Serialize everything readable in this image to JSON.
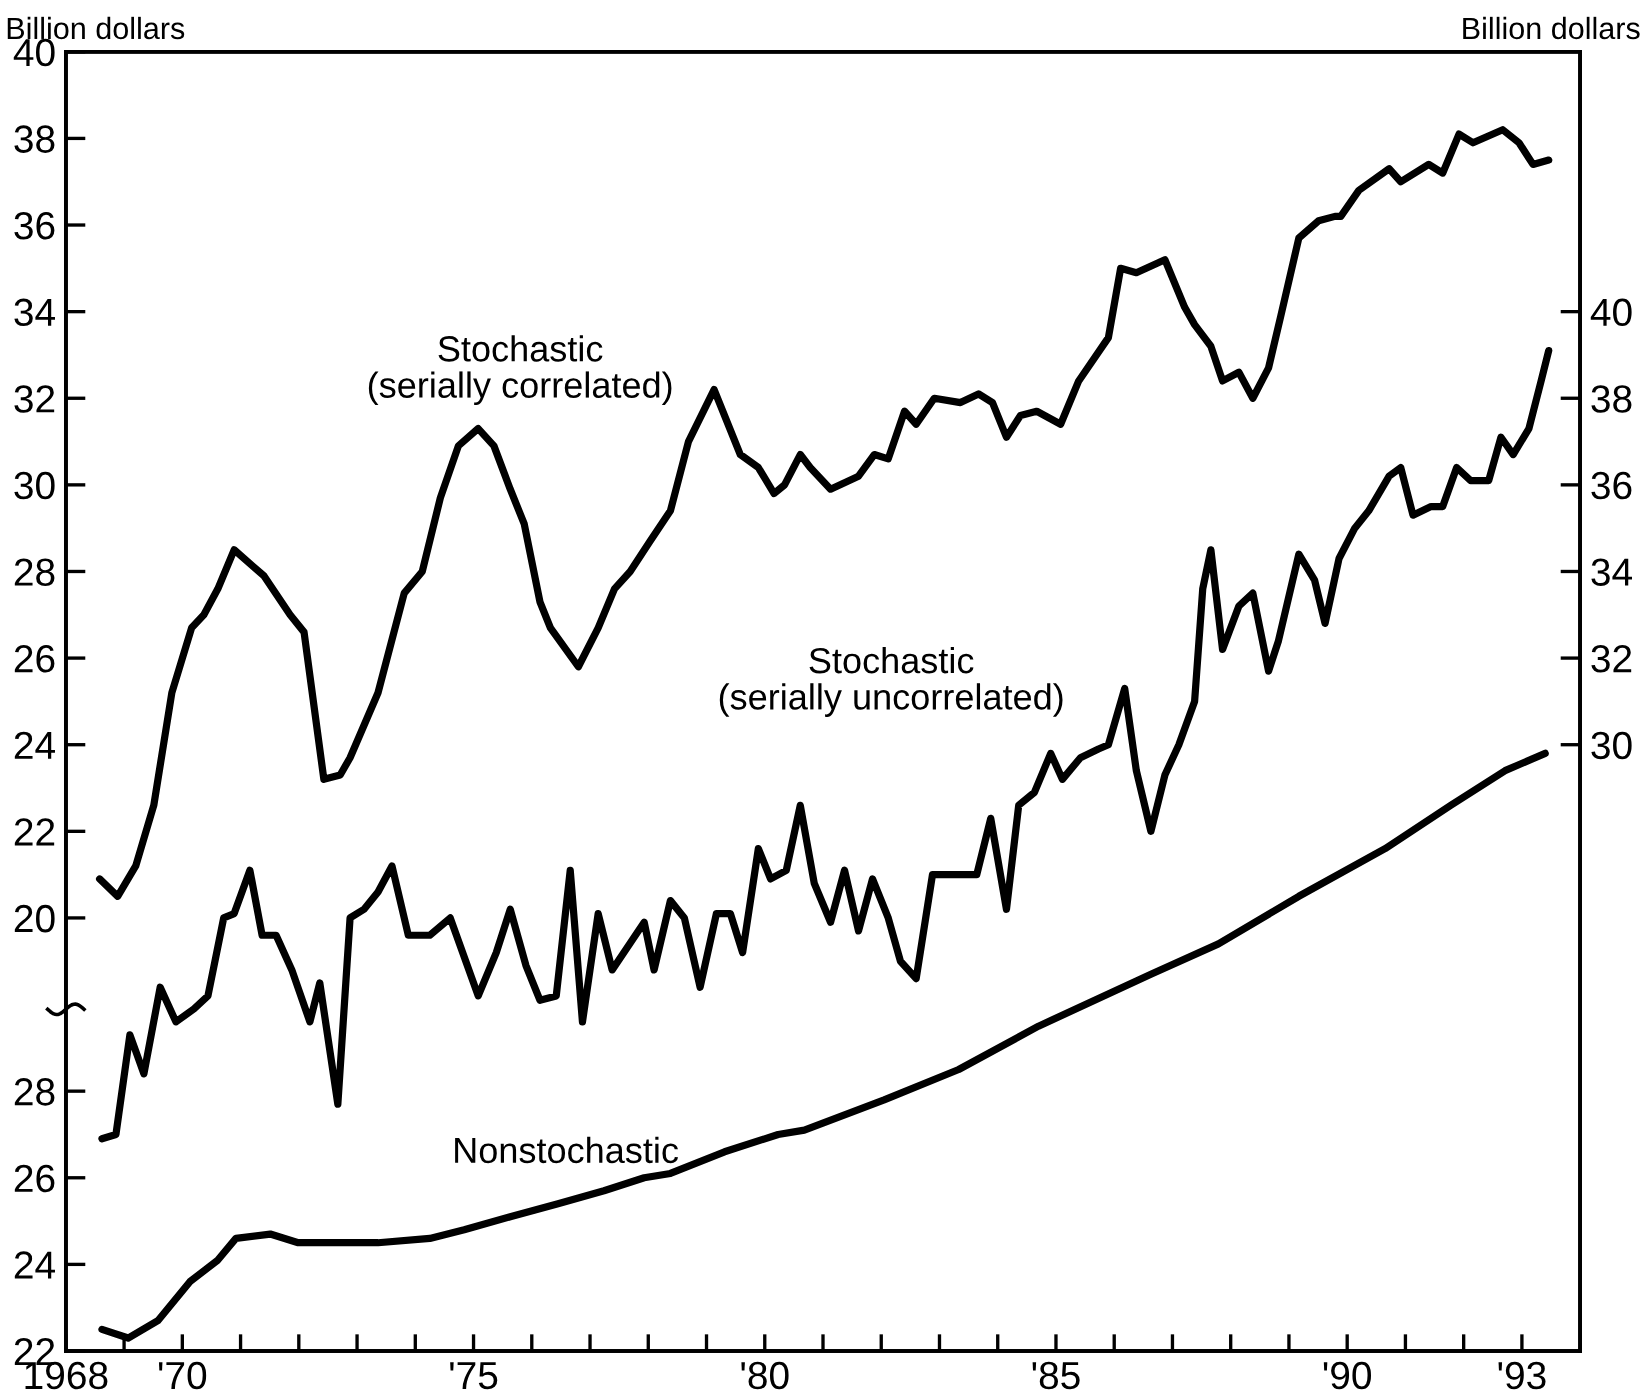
{
  "chart_data": {
    "type": "line",
    "xlim": [
      1968,
      1994
    ],
    "xticks": [
      {
        "value": 1968,
        "label": "1968"
      },
      {
        "value": 1969,
        "label": null
      },
      {
        "value": 1970,
        "label": "'70"
      },
      {
        "value": 1971,
        "label": null
      },
      {
        "value": 1972,
        "label": null
      },
      {
        "value": 1973,
        "label": null
      },
      {
        "value": 1974,
        "label": null
      },
      {
        "value": 1975,
        "label": "'75"
      },
      {
        "value": 1976,
        "label": null
      },
      {
        "value": 1977,
        "label": null
      },
      {
        "value": 1978,
        "label": null
      },
      {
        "value": 1979,
        "label": null
      },
      {
        "value": 1980,
        "label": "'80"
      },
      {
        "value": 1981,
        "label": null
      },
      {
        "value": 1982,
        "label": null
      },
      {
        "value": 1983,
        "label": null
      },
      {
        "value": 1984,
        "label": null
      },
      {
        "value": 1985,
        "label": "'85"
      },
      {
        "value": 1986,
        "label": null
      },
      {
        "value": 1987,
        "label": null
      },
      {
        "value": 1988,
        "label": null
      },
      {
        "value": 1989,
        "label": null
      },
      {
        "value": 1990,
        "label": "'90"
      },
      {
        "value": 1991,
        "label": null
      },
      {
        "value": 1992,
        "label": null
      },
      {
        "value": 1993,
        "label": "'93"
      }
    ],
    "ylabel": "Billion dollars",
    "y2label": "Billion dollars",
    "ylim": [
      10,
      40
    ],
    "yticks": [
      20,
      22,
      24,
      26,
      28,
      30,
      32,
      34,
      36,
      38,
      40
    ],
    "y2lim": [
      16,
      46
    ],
    "y2ticks": [
      30,
      32,
      34,
      36,
      38,
      40
    ],
    "y3lim": [
      22,
      52
    ],
    "y3ticks": [
      22,
      24,
      26,
      28
    ],
    "grid": false,
    "series": [
      {
        "name": "Stochastic\n(serially correlated)",
        "color": "#000000",
        "axis": "y",
        "x": [
          1968.58,
          1968.89,
          1969.2,
          1969.51,
          1969.82,
          1970.16,
          1970.37,
          1970.61,
          1970.89,
          1971.4,
          1971.85,
          1972.09,
          1972.43,
          1972.71,
          1972.88,
          1973.36,
          1973.81,
          1974.12,
          1974.43,
          1974.74,
          1975.08,
          1975.35,
          1975.63,
          1975.87,
          1976.14,
          1976.32,
          1976.8,
          1977.14,
          1977.42,
          1977.69,
          1978.03,
          1978.38,
          1978.69,
          1979.13,
          1979.58,
          1979.89,
          1980.16,
          1980.34,
          1980.61,
          1980.78,
          1981.13,
          1981.61,
          1981.88,
          1982.12,
          1982.4,
          1982.6,
          1982.91,
          1983.36,
          1983.67,
          1983.91,
          1984.15,
          1984.39,
          1984.67,
          1985.08,
          1985.39,
          1985.9,
          1986.11,
          1986.38,
          1986.87,
          1987.21,
          1987.38,
          1987.66,
          1987.86,
          1988.14,
          1988.38,
          1988.65,
          1988.86,
          1989.17,
          1989.51,
          1989.79,
          1989.89,
          1990.2,
          1990.72,
          1990.92,
          1991.4,
          1991.64,
          1991.92,
          1992.16,
          1992.67,
          1992.95,
          1993.19,
          1993.46
        ],
        "values": [
          20.9,
          20.5,
          21.2,
          22.6,
          25.2,
          26.7,
          27.0,
          27.6,
          28.5,
          27.9,
          27.0,
          26.6,
          23.2,
          23.3,
          23.7,
          25.2,
          27.5,
          28.0,
          29.7,
          30.9,
          31.3,
          30.9,
          29.9,
          29.1,
          27.3,
          26.7,
          25.8,
          26.7,
          27.6,
          28.0,
          28.7,
          29.4,
          31.0,
          32.2,
          30.7,
          30.4,
          29.8,
          30.0,
          30.7,
          30.4,
          29.9,
          30.2,
          30.7,
          30.6,
          31.7,
          31.4,
          32.0,
          31.9,
          32.1,
          31.9,
          31.1,
          31.6,
          31.7,
          31.4,
          32.4,
          33.4,
          35.0,
          34.9,
          35.2,
          34.1,
          33.7,
          33.2,
          32.4,
          32.6,
          32.0,
          32.7,
          33.9,
          35.7,
          36.1,
          36.2,
          36.2,
          36.8,
          37.3,
          37.0,
          37.4,
          37.2,
          38.1,
          37.9,
          38.2,
          37.9,
          37.4,
          37.5
        ]
      },
      {
        "name": "Stochastic\n(serially uncorrelated)",
        "color": "#000000",
        "axis": "y2",
        "x": [
          1968.62,
          1968.86,
          1969.1,
          1969.34,
          1969.62,
          1969.89,
          1970.2,
          1970.44,
          1970.71,
          1970.89,
          1971.16,
          1971.37,
          1971.61,
          1971.88,
          1972.19,
          1972.36,
          1972.67,
          1972.88,
          1973.12,
          1973.36,
          1973.6,
          1973.88,
          1974.25,
          1974.6,
          1975.08,
          1975.39,
          1975.63,
          1975.9,
          1976.14,
          1976.42,
          1976.66,
          1976.87,
          1977.14,
          1977.38,
          1977.93,
          1978.1,
          1978.38,
          1978.62,
          1978.89,
          1979.17,
          1979.41,
          1979.62,
          1979.89,
          1980.1,
          1980.37,
          1980.61,
          1980.85,
          1981.13,
          1981.37,
          1981.61,
          1981.85,
          1982.12,
          1982.33,
          1982.6,
          1982.88,
          1983.43,
          1983.64,
          1983.88,
          1984.15,
          1984.36,
          1984.63,
          1984.91,
          1985.11,
          1985.42,
          1985.73,
          1985.9,
          1986.18,
          1986.38,
          1986.63,
          1986.87,
          1987.11,
          1987.38,
          1987.52,
          1987.66,
          1987.86,
          1988.14,
          1988.38,
          1988.65,
          1988.82,
          1989.17,
          1989.44,
          1989.62,
          1989.86,
          1990.13,
          1990.37,
          1990.72,
          1990.92,
          1991.13,
          1991.44,
          1991.64,
          1991.88,
          1992.12,
          1992.43,
          1992.64,
          1992.85,
          1993.12,
          1993.33,
          1993.46
        ],
        "values": [
          20.9,
          21.0,
          23.3,
          22.4,
          24.4,
          23.6,
          23.9,
          24.2,
          26.0,
          26.1,
          27.1,
          25.6,
          25.6,
          24.8,
          23.6,
          24.5,
          21.7,
          26.0,
          26.2,
          26.6,
          27.2,
          25.6,
          25.6,
          26.0,
          24.2,
          25.2,
          26.2,
          24.9,
          24.1,
          24.2,
          27.1,
          23.6,
          26.1,
          24.8,
          25.9,
          24.8,
          26.4,
          26.0,
          24.4,
          26.1,
          26.1,
          25.2,
          27.6,
          26.9,
          27.1,
          28.6,
          26.8,
          25.9,
          27.1,
          25.7,
          26.9,
          26.0,
          25.0,
          24.6,
          27.0,
          27.0,
          27.0,
          28.3,
          26.2,
          28.6,
          28.9,
          29.8,
          29.2,
          29.7,
          29.9,
          30.0,
          31.3,
          29.4,
          28.0,
          29.3,
          30.0,
          31.0,
          33.6,
          34.5,
          32.2,
          33.2,
          33.5,
          31.7,
          32.4,
          34.4,
          33.8,
          32.8,
          34.3,
          35.0,
          35.4,
          36.2,
          36.4,
          35.3,
          35.5,
          35.5,
          36.4,
          36.1,
          36.1,
          37.1,
          36.7,
          37.3,
          38.4,
          39.1
        ]
      },
      {
        "name": "Nonstochastic",
        "color": "#000000",
        "axis": "y3",
        "x": [
          1968.62,
          1969.07,
          1969.58,
          1970.13,
          1970.61,
          1970.92,
          1971.51,
          1971.99,
          1972.67,
          1973.36,
          1974.25,
          1974.84,
          1975.63,
          1976.45,
          1977.24,
          1977.93,
          1978.38,
          1979.31,
          1980.23,
          1980.68,
          1982.05,
          1983.33,
          1984.7,
          1986.63,
          1987.79,
          1989.17,
          1990.65,
          1991.78,
          1992.71,
          1993.4
        ],
        "values": [
          22.5,
          22.3,
          22.7,
          23.6,
          24.1,
          24.6,
          24.7,
          24.5,
          24.5,
          24.5,
          24.6,
          24.8,
          25.1,
          25.4,
          25.7,
          26.0,
          26.1,
          26.6,
          27.0,
          27.1,
          27.8,
          28.5,
          29.5,
          30.7,
          31.4,
          32.5,
          33.6,
          34.6,
          35.4,
          35.8
        ]
      }
    ]
  }
}
